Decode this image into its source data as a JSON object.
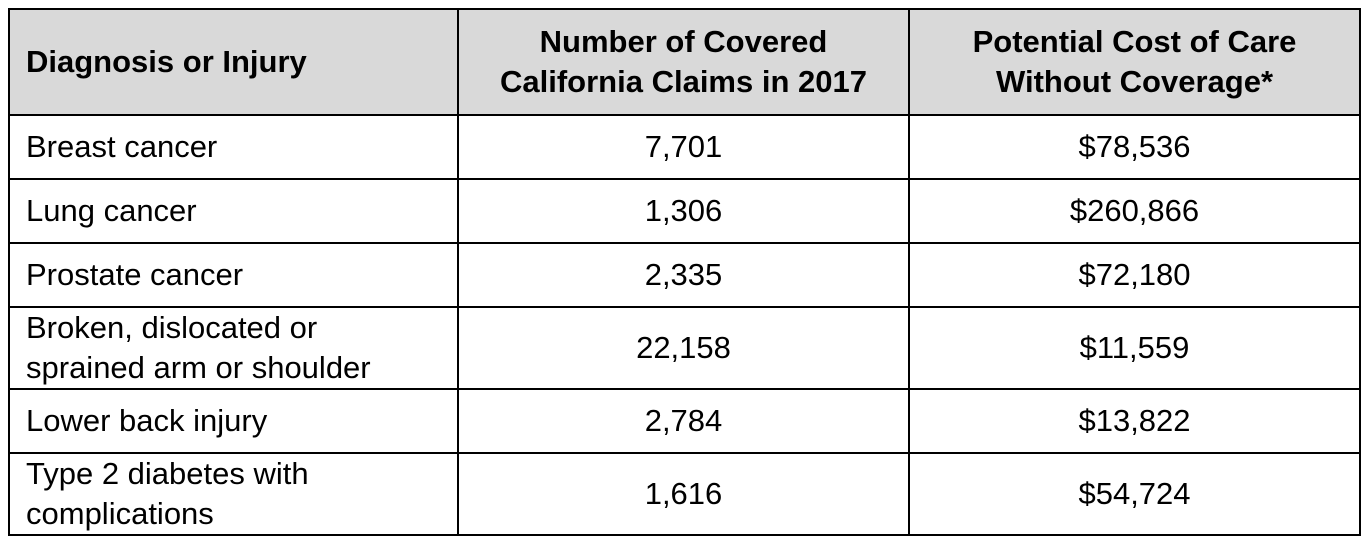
{
  "table": {
    "headers": {
      "diagnosis": "Diagnosis or Injury",
      "claims_line1": "Number of Covered",
      "claims_line2": "California Claims in 2017",
      "cost_line1": "Potential Cost of Care",
      "cost_line2": "Without Coverage*"
    },
    "rows": [
      {
        "diagnosis_line1": "Breast cancer",
        "diagnosis_line2": "",
        "claims": "7,701",
        "cost": "$78,536"
      },
      {
        "diagnosis_line1": "Lung cancer",
        "diagnosis_line2": "",
        "claims": "1,306",
        "cost": "$260,866"
      },
      {
        "diagnosis_line1": "Prostate cancer",
        "diagnosis_line2": "",
        "claims": "2,335",
        "cost": "$72,180"
      },
      {
        "diagnosis_line1": "Broken, dislocated or",
        "diagnosis_line2": "sprained arm or shoulder",
        "claims": "22,158",
        "cost": "$11,559"
      },
      {
        "diagnosis_line1": "Lower back injury",
        "diagnosis_line2": "",
        "claims": "2,784",
        "cost": "$13,822"
      },
      {
        "diagnosis_line1": "Type 2 diabetes with",
        "diagnosis_line2": "complications",
        "claims": "1,616",
        "cost": "$54,724"
      }
    ]
  }
}
